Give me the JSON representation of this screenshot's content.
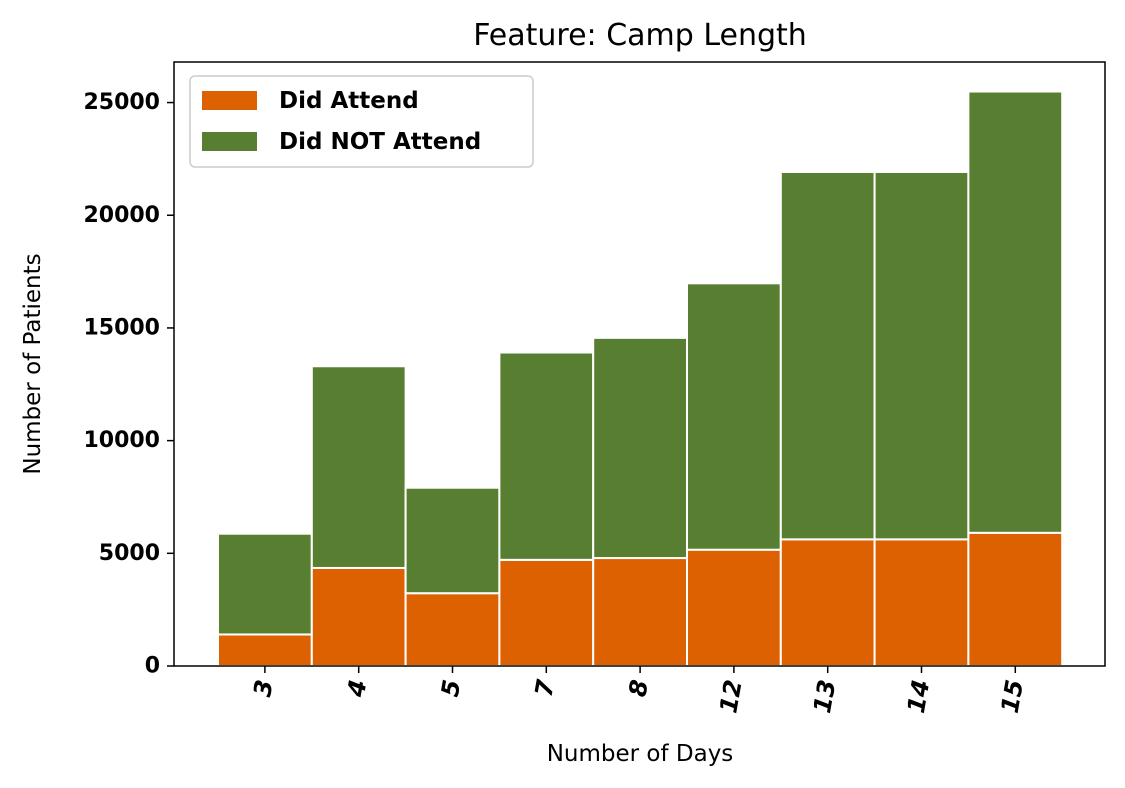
{
  "chart_data": {
    "type": "bar",
    "stacked": true,
    "title": "Feature: Camp Length",
    "xlabel": "Number of Days",
    "ylabel": "Number of Patients",
    "categories": [
      "3",
      "4",
      "5",
      "7",
      "8",
      "12",
      "13",
      "14",
      "15"
    ],
    "series": [
      {
        "name": "Did Attend",
        "color": "#dd6100",
        "values": [
          1400,
          4350,
          3230,
          4710,
          4790,
          5160,
          5620,
          5620,
          5910
        ]
      },
      {
        "name": "Did NOT Attend",
        "color": "#587f31",
        "values": [
          4470,
          8950,
          4680,
          9200,
          9770,
          11820,
          16300,
          16300,
          19580
        ]
      }
    ],
    "ylim": [
      0,
      26800
    ],
    "yticks": [
      0,
      5000,
      10000,
      15000,
      20000,
      25000
    ],
    "grid": false,
    "legend_position": "top-left"
  }
}
